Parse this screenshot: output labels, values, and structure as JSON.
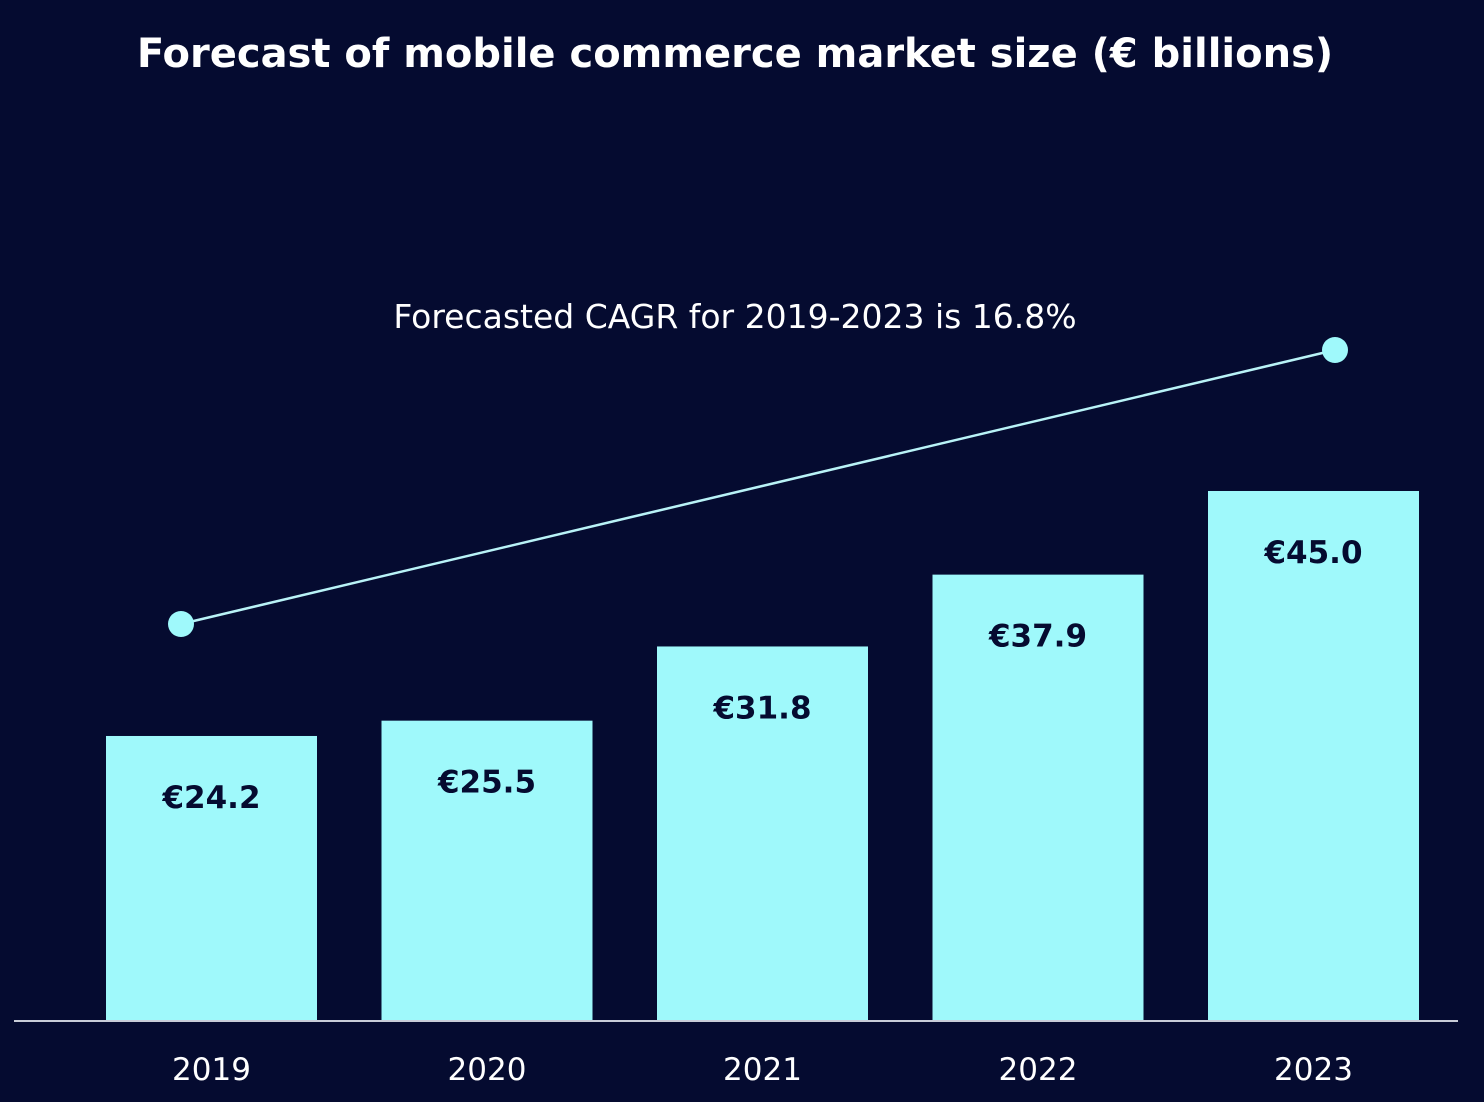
{
  "colors": {
    "background": "#050b30",
    "bar": "#9ff9fb",
    "bar_text": "#050b30",
    "text": "#ffffff",
    "trend_line": "#b9f3f7",
    "axis": "#c9cdd8"
  },
  "chart_data": {
    "type": "bar",
    "title": "Forecast of mobile commerce market size (€ billions)",
    "annotation": "Forecasted CAGR for 2019-2023 is 16.8%",
    "categories": [
      "2019",
      "2020",
      "2021",
      "2022",
      "2023"
    ],
    "values": [
      24.2,
      25.5,
      31.8,
      37.9,
      45.0
    ],
    "data_labels": [
      "€24.2",
      "€25.5",
      "€31.8",
      "€37.9",
      "€45.0"
    ],
    "ylim": [
      0,
      45
    ],
    "xlabel": "",
    "ylabel": "",
    "grid": false,
    "legend": "none",
    "trend_line": {
      "from": "2019",
      "to": "2023"
    }
  }
}
